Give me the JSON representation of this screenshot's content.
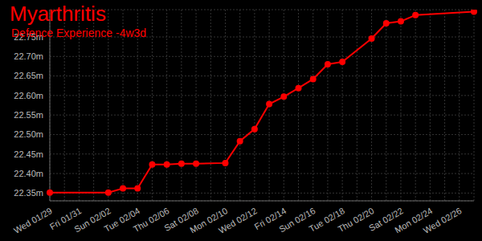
{
  "chart_data": {
    "type": "line",
    "title": "Myarthritis",
    "subtitle": "Defence Experience -4w3d",
    "categories": [
      "Wed 01/29",
      null,
      "Fri 01/31",
      null,
      "Sun 02/02",
      null,
      "Tue 02/04",
      null,
      "Thu 02/06",
      null,
      "Sat 02/08",
      null,
      "Mon 02/10",
      null,
      "Wed 02/12",
      null,
      "Fri 02/14",
      null,
      "Sun 02/16",
      null,
      "Tue 02/18",
      null,
      "Thu 02/20",
      null,
      "Sat 02/22",
      null,
      "Mon 02/24",
      null,
      "Wed 02/26",
      null
    ],
    "series": [
      {
        "name": "Defence Experience",
        "color": "#ff0000",
        "marker": "circle",
        "values": [
          22.351,
          null,
          null,
          null,
          22.351,
          22.362,
          22.362,
          22.423,
          22.423,
          22.425,
          22.425,
          null,
          22.427,
          22.483,
          22.514,
          22.578,
          22.597,
          22.619,
          22.642,
          22.68,
          22.686,
          null,
          22.746,
          22.785,
          22.79,
          22.806,
          null,
          null,
          null,
          22.815
        ]
      }
    ],
    "ylim": [
      22.33,
      22.82
    ],
    "yticks": [
      {
        "value": 22.35,
        "label": "22.35m"
      },
      {
        "value": 22.4,
        "label": "22.40m"
      },
      {
        "value": 22.45,
        "label": "22.45m"
      },
      {
        "value": 22.5,
        "label": "22.50m"
      },
      {
        "value": 22.55,
        "label": "22.55m"
      },
      {
        "value": 22.6,
        "label": "22.60m"
      },
      {
        "value": 22.65,
        "label": "22.65m"
      },
      {
        "value": 22.7,
        "label": "22.70m"
      },
      {
        "value": 22.75,
        "label": "22.75m"
      }
    ],
    "grid": true
  }
}
